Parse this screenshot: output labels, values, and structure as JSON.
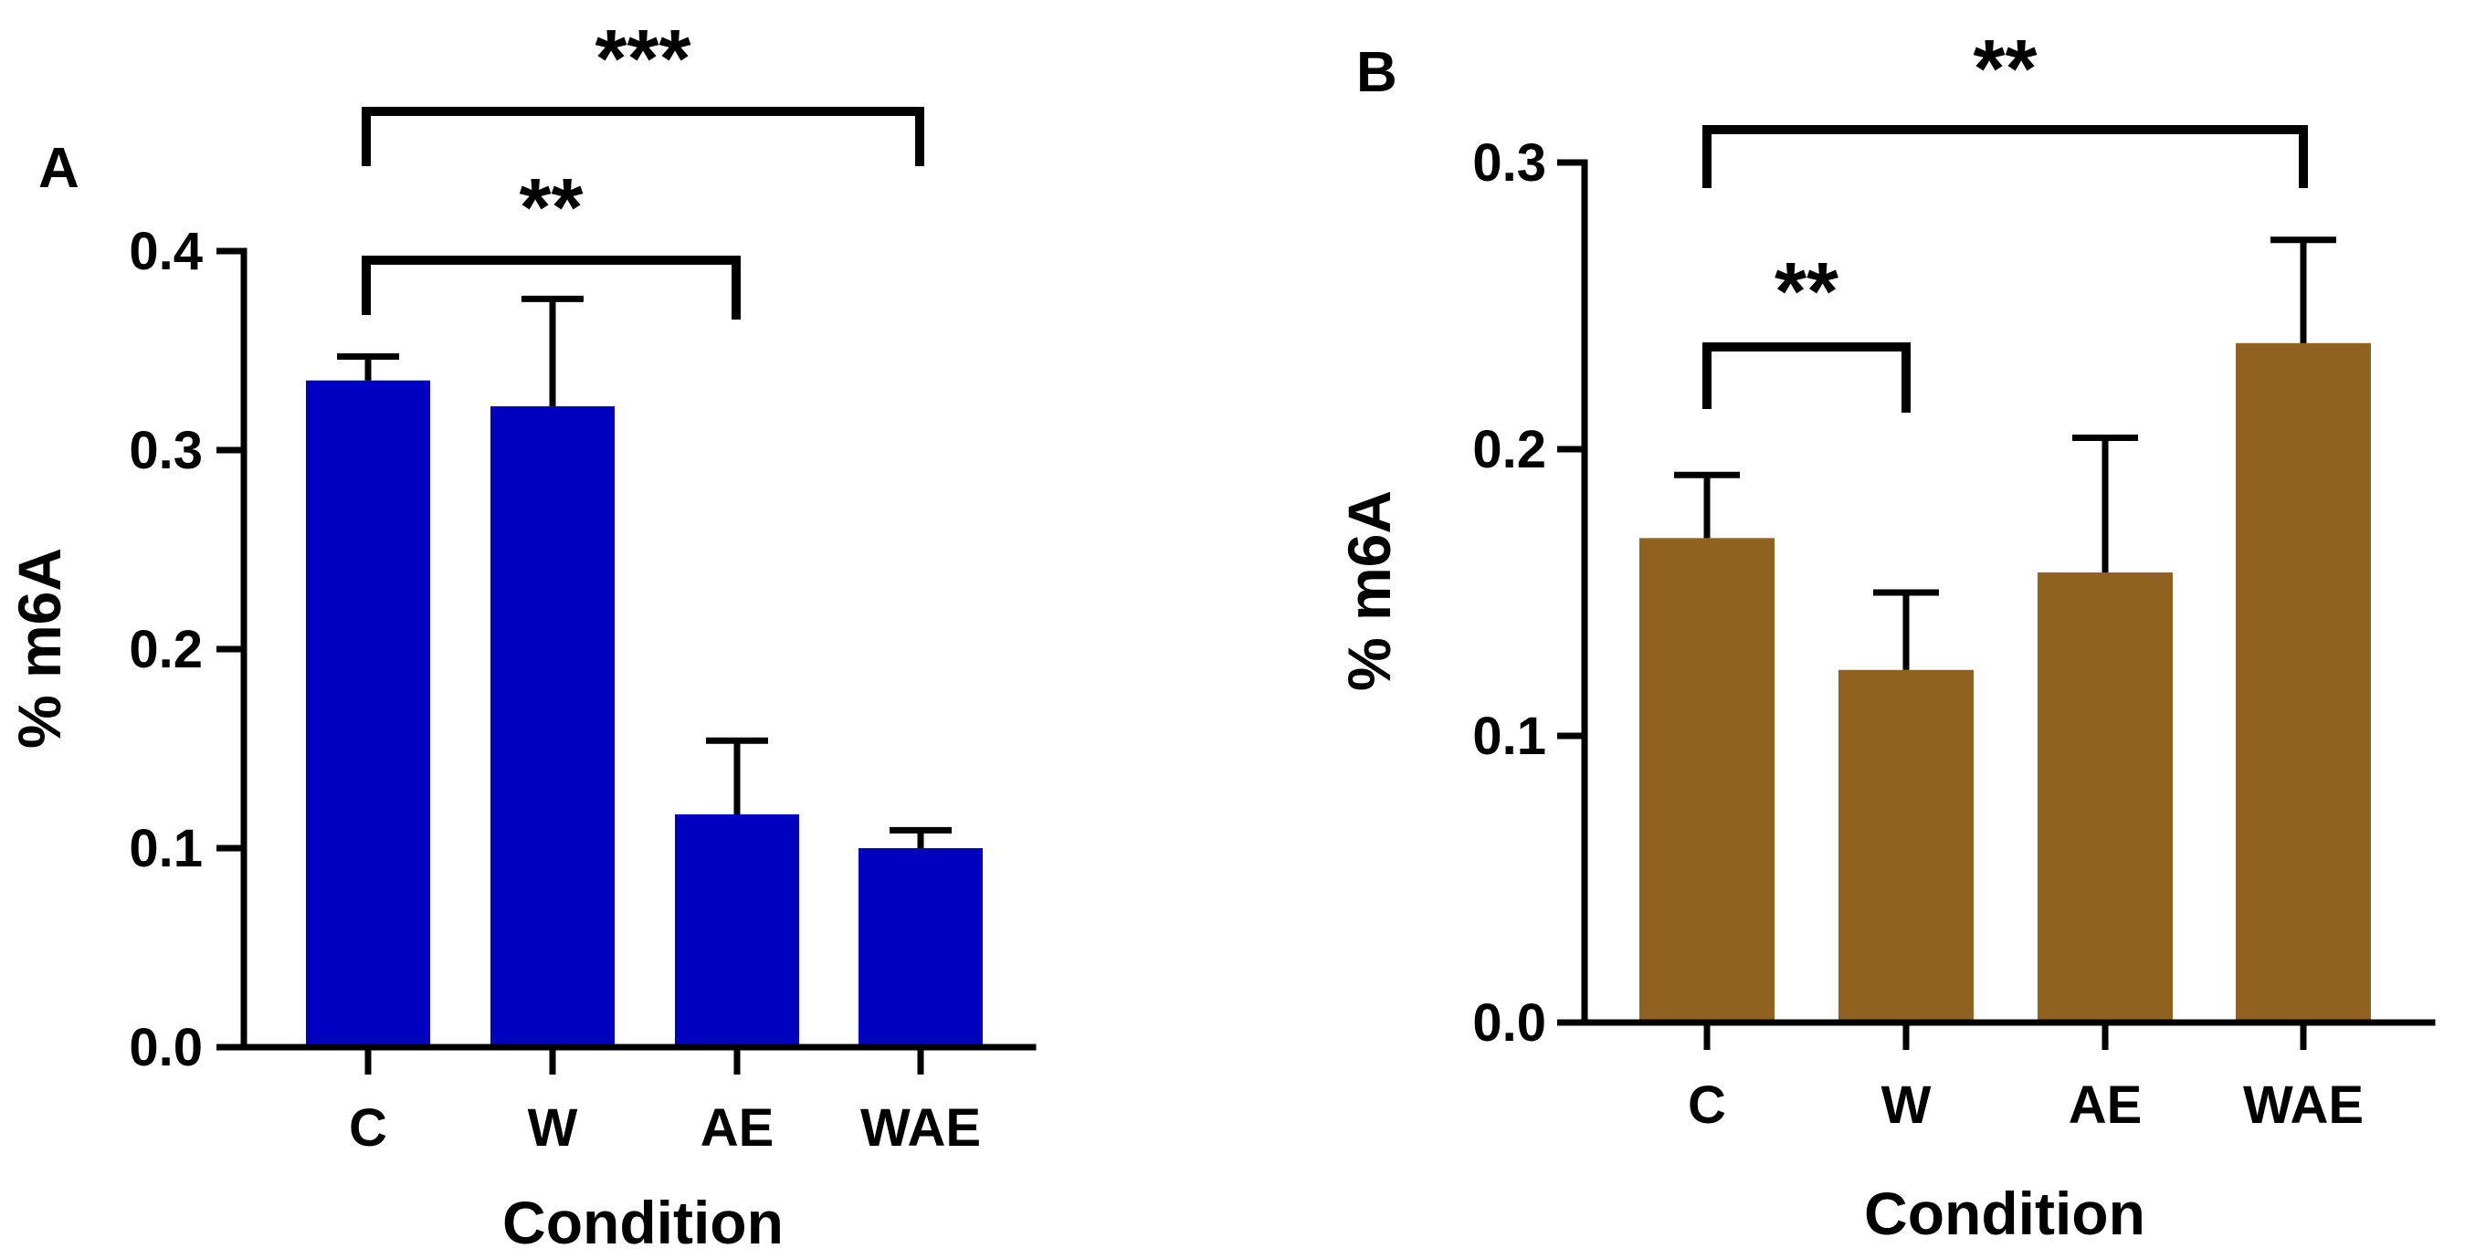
{
  "chart_data": [
    {
      "panel": "A",
      "type": "bar",
      "categories": [
        "C",
        "W",
        "AE",
        "WAE"
      ],
      "values": [
        0.335,
        0.322,
        0.117,
        0.1
      ],
      "errors": [
        0.012,
        0.054,
        0.037,
        0.009
      ],
      "color": "#0000C0",
      "xlabel": "Condition",
      "ylabel": "% m6A",
      "ylim": [
        0,
        0.4
      ],
      "yticks": [
        "0.0",
        "0.1",
        "0.2",
        "0.3",
        "0.4"
      ],
      "significance": [
        {
          "from": "C",
          "to": "AE",
          "label": "**"
        },
        {
          "from": "C",
          "to": "WAE",
          "label": "***"
        }
      ]
    },
    {
      "panel": "B",
      "type": "bar",
      "categories": [
        "C",
        "W",
        "AE",
        "WAE"
      ],
      "values": [
        0.169,
        0.123,
        0.157,
        0.237
      ],
      "errors": [
        0.022,
        0.027,
        0.047,
        0.036
      ],
      "color": "#916120",
      "xlabel": "Condition",
      "ylabel": "% m6A",
      "ylim": [
        0,
        0.3
      ],
      "yticks": [
        "0.0",
        "0.1",
        "0.2",
        "0.3"
      ],
      "significance": [
        {
          "from": "C",
          "to": "W",
          "label": "**"
        },
        {
          "from": "C",
          "to": "WAE",
          "label": "**"
        }
      ]
    }
  ]
}
